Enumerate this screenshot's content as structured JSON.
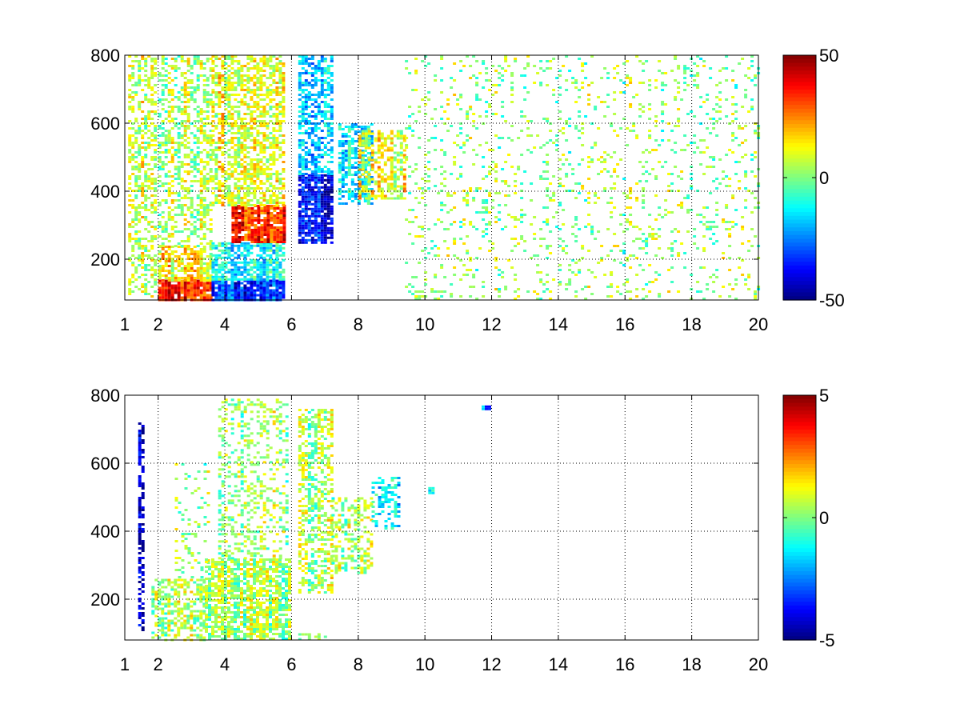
{
  "chart_data": [
    {
      "type": "heatmap",
      "title": "",
      "xlabel": "",
      "ylabel": "",
      "xlim": [
        1,
        20
      ],
      "ylim": [
        80,
        800
      ],
      "xticks": [
        1,
        2,
        4,
        6,
        8,
        10,
        12,
        14,
        16,
        18,
        20
      ],
      "yticks": [
        200,
        400,
        600,
        800
      ],
      "grid": true,
      "colormap": "jet",
      "colorbar": {
        "range": [
          -50,
          50
        ],
        "ticks": [
          -50,
          0,
          50
        ]
      },
      "regions": [
        {
          "x": [
            1.1,
            1.9
          ],
          "y": [
            80,
            800
          ],
          "value": 8,
          "density": 0.45
        },
        {
          "x": [
            2.0,
            3.6
          ],
          "y": [
            80,
            140
          ],
          "value": 35,
          "density": 0.9
        },
        {
          "x": [
            2.0,
            3.6
          ],
          "y": [
            140,
            240
          ],
          "value": 14,
          "density": 0.7
        },
        {
          "x": [
            2.0,
            3.6
          ],
          "y": [
            240,
            800
          ],
          "value": 4,
          "density": 0.45
        },
        {
          "x": [
            3.6,
            5.8
          ],
          "y": [
            80,
            140
          ],
          "value": -32,
          "density": 0.9
        },
        {
          "x": [
            3.6,
            5.8
          ],
          "y": [
            140,
            250
          ],
          "value": -12,
          "density": 0.75
        },
        {
          "x": [
            4.2,
            5.8
          ],
          "y": [
            250,
            360
          ],
          "value": 34,
          "density": 0.9
        },
        {
          "x": [
            3.6,
            5.8
          ],
          "y": [
            360,
            800
          ],
          "value": 10,
          "density": 0.6
        },
        {
          "x": [
            6.2,
            7.2
          ],
          "y": [
            250,
            450
          ],
          "value": -38,
          "density": 0.85
        },
        {
          "x": [
            6.2,
            7.2
          ],
          "y": [
            450,
            800
          ],
          "value": -15,
          "density": 0.6
        },
        {
          "x": [
            7.4,
            8.4
          ],
          "y": [
            360,
            600
          ],
          "value": -12,
          "density": 0.6
        },
        {
          "x": [
            8.0,
            9.4
          ],
          "y": [
            380,
            580
          ],
          "value": 10,
          "density": 0.55
        },
        {
          "x": [
            9.4,
            20.0
          ],
          "y": [
            80,
            800
          ],
          "value": 2,
          "density": 0.12
        }
      ]
    },
    {
      "type": "heatmap",
      "title": "",
      "xlabel": "",
      "ylabel": "",
      "xlim": [
        1,
        20
      ],
      "ylim": [
        80,
        800
      ],
      "xticks": [
        1,
        2,
        4,
        6,
        8,
        10,
        12,
        14,
        16,
        18,
        20
      ],
      "yticks": [
        200,
        400,
        600,
        800
      ],
      "grid": true,
      "colormap": "jet",
      "colorbar": {
        "range": [
          -5,
          5
        ],
        "ticks": [
          -5,
          0,
          5
        ]
      },
      "regions": [
        {
          "x": [
            1.4,
            1.5
          ],
          "y": [
            110,
            720
          ],
          "value": -4.5,
          "density": 0.6
        },
        {
          "x": [
            1.8,
            3.4
          ],
          "y": [
            80,
            260
          ],
          "value": 0.3,
          "density": 0.55
        },
        {
          "x": [
            2.5,
            3.5
          ],
          "y": [
            260,
            600
          ],
          "value": 0.2,
          "density": 0.15
        },
        {
          "x": [
            3.4,
            5.9
          ],
          "y": [
            80,
            320
          ],
          "value": 0.3,
          "density": 0.7
        },
        {
          "x": [
            3.8,
            5.9
          ],
          "y": [
            320,
            790
          ],
          "value": 0.4,
          "density": 0.3
        },
        {
          "x": [
            6.2,
            7.2
          ],
          "y": [
            80,
            100
          ],
          "value": 0.5,
          "density": 0.5
        },
        {
          "x": [
            6.2,
            7.2
          ],
          "y": [
            220,
            760
          ],
          "value": 0.4,
          "density": 0.5
        },
        {
          "x": [
            7.2,
            8.4
          ],
          "y": [
            280,
            500
          ],
          "value": 0.3,
          "density": 0.45
        },
        {
          "x": [
            8.4,
            9.2
          ],
          "y": [
            410,
            560
          ],
          "value": -1.4,
          "density": 0.35
        },
        {
          "x": [
            10.1,
            10.2
          ],
          "y": [
            510,
            530
          ],
          "value": -1.5,
          "density": 1.0
        },
        {
          "x": [
            11.7,
            11.9
          ],
          "y": [
            760,
            770
          ],
          "value": -2.5,
          "density": 1.0
        }
      ]
    }
  ]
}
